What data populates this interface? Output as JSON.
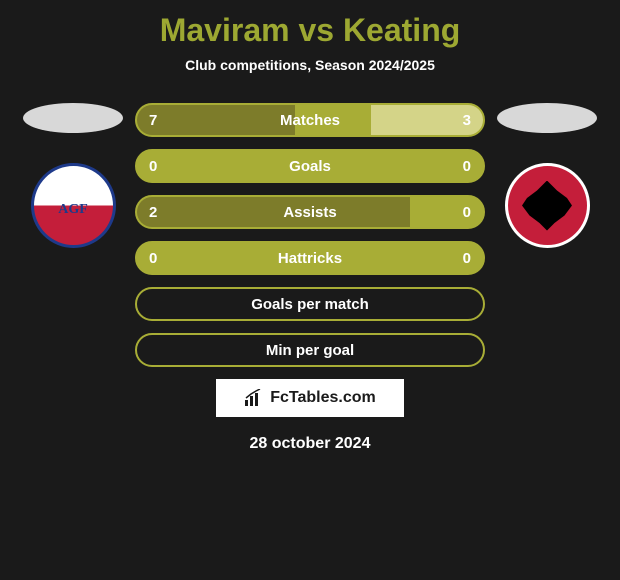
{
  "header": {
    "title": "Maviram vs Keating",
    "subtitle": "Club competitions, Season 2024/2025",
    "title_color": "#9da832",
    "subtitle_color": "#ffffff"
  },
  "background_color": "#1a1a1a",
  "players": {
    "left": {
      "club_name": "AGF Aarhus",
      "badge_text": "AGF",
      "badge_bg_top": "#ffffff",
      "badge_bg_bottom": "#c41e3a",
      "badge_border": "#1e3a8a"
    },
    "right": {
      "club_name": "Club",
      "badge_bg": "#c41e3a",
      "badge_border": "#ffffff"
    }
  },
  "bars": {
    "base_color": "#a8ad36",
    "left_fill_color": "#7d7c2a",
    "right_fill_color": "#d4d488",
    "text_color": "#ffffff",
    "height": 34,
    "radius": 17
  },
  "stats": [
    {
      "label": "Matches",
      "left_value": "7",
      "right_value": "3",
      "left_pct": 45,
      "right_pct": 32
    },
    {
      "label": "Goals",
      "left_value": "0",
      "right_value": "0",
      "left_pct": 0,
      "right_pct": 0
    },
    {
      "label": "Assists",
      "left_value": "2",
      "right_value": "0",
      "left_pct": 78,
      "right_pct": 0
    },
    {
      "label": "Hattricks",
      "left_value": "0",
      "right_value": "0",
      "left_pct": 0,
      "right_pct": 0
    },
    {
      "label": "Goals per match",
      "left_value": "",
      "right_value": "",
      "left_pct": 0,
      "right_pct": 0,
      "empty": true
    },
    {
      "label": "Min per goal",
      "left_value": "",
      "right_value": "",
      "left_pct": 0,
      "right_pct": 0,
      "empty": true
    }
  ],
  "watermark": {
    "text": "FcTables.com",
    "bg": "#ffffff",
    "color": "#1a1a1a"
  },
  "date": "28 october 2024"
}
